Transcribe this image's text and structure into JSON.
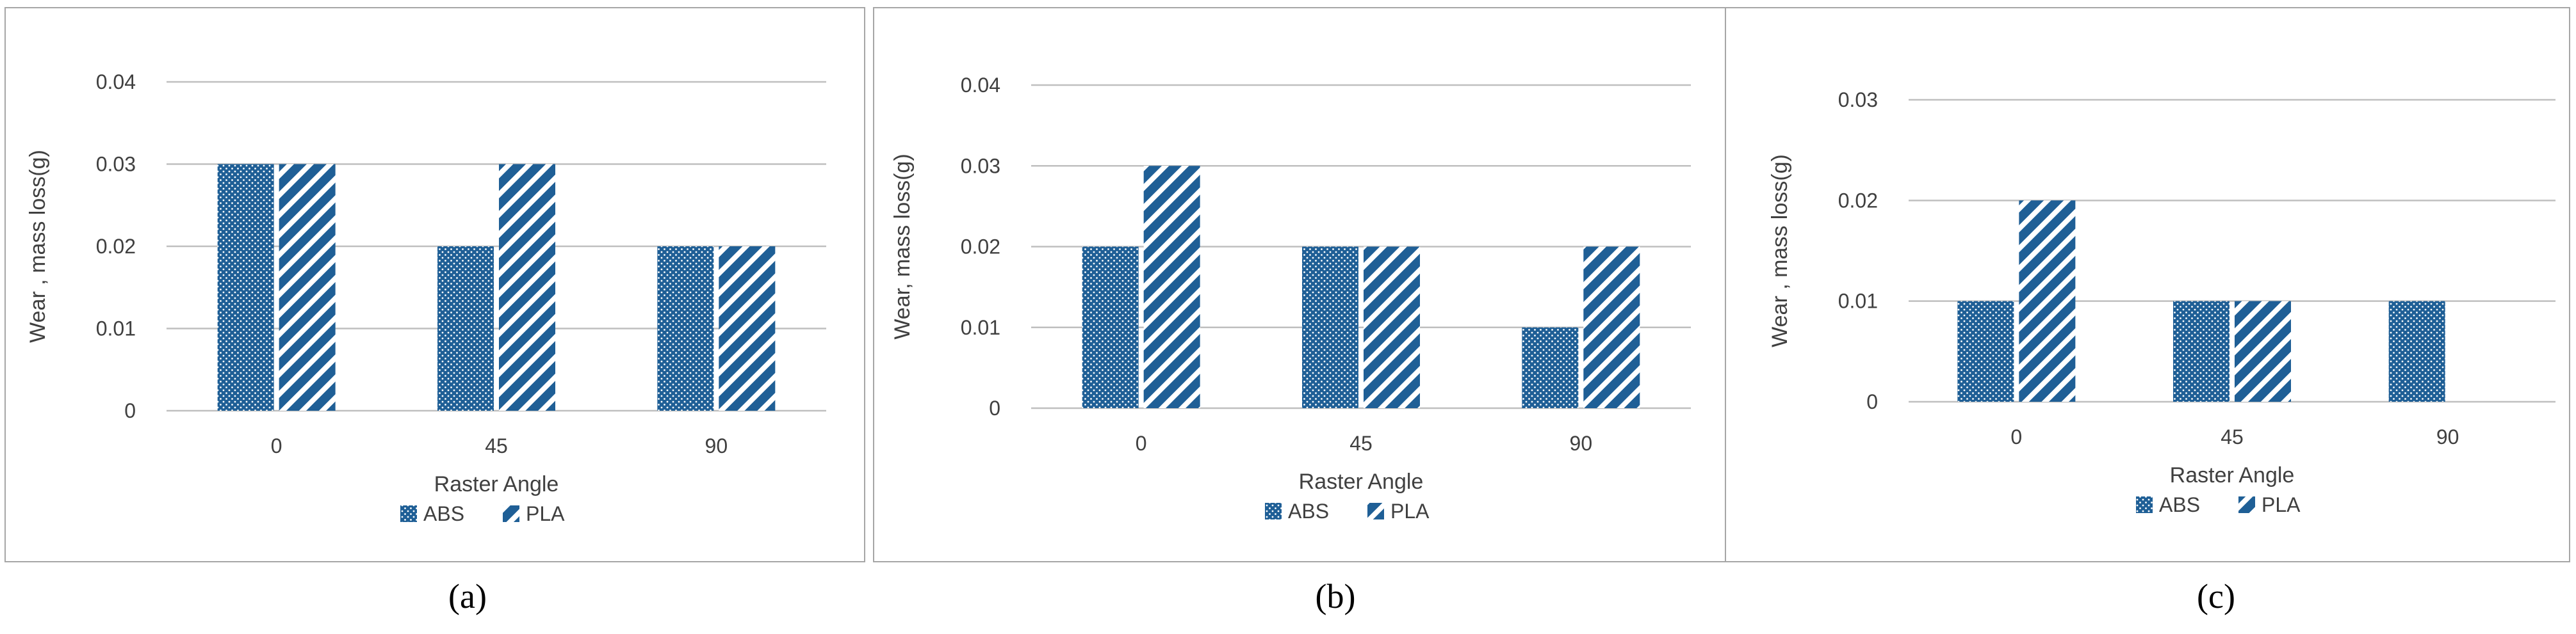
{
  "colors": {
    "abs": "#1f5f96",
    "pla": "#1f5f96",
    "gridline": "#bfbfbf",
    "panel_border": "#a6a6a6",
    "text": "#404040"
  },
  "chart_data": [
    {
      "type": "bar",
      "caption": "(a)",
      "categories": [
        "0",
        "45",
        "90"
      ],
      "series": [
        {
          "name": "ABS",
          "values": [
            0.03,
            0.02,
            0.02
          ],
          "pattern": "dots"
        },
        {
          "name": "PLA",
          "values": [
            0.03,
            0.03,
            0.02
          ],
          "pattern": "diagonal-stripes"
        }
      ],
      "xlabel": "Raster Angle",
      "ylabel": "Wear , mass loss(g)",
      "ylim": [
        0,
        0.04
      ],
      "yticks": [
        "0",
        "0.01",
        "0.02",
        "0.03",
        "0.04"
      ],
      "grid": true,
      "legend": "bottom"
    },
    {
      "type": "bar",
      "caption": "(b)",
      "categories": [
        "0",
        "45",
        "90"
      ],
      "series": [
        {
          "name": "ABS",
          "values": [
            0.02,
            0.02,
            0.01
          ],
          "pattern": "dots"
        },
        {
          "name": "PLA",
          "values": [
            0.03,
            0.02,
            0.02
          ],
          "pattern": "diagonal-stripes"
        }
      ],
      "xlabel": "Raster Angle",
      "ylabel": "Wear, mass loss(g)",
      "ylim": [
        0,
        0.04
      ],
      "yticks": [
        "0",
        "0.01",
        "0.02",
        "0.03",
        "0.04"
      ],
      "grid": true,
      "legend": "bottom"
    },
    {
      "type": "bar",
      "caption": "(c)",
      "categories": [
        "0",
        "45",
        "90"
      ],
      "series": [
        {
          "name": "ABS",
          "values": [
            0.01,
            0.01,
            0.01
          ],
          "pattern": "dots"
        },
        {
          "name": "PLA",
          "values": [
            0.02,
            0.01,
            0
          ],
          "pattern": "diagonal-stripes"
        }
      ],
      "xlabel": "Raster Angle",
      "ylabel": "Wear , mass loss(g)",
      "ylim": [
        0,
        0.03
      ],
      "yticks": [
        "0",
        "0.01",
        "0.02",
        "0.03"
      ],
      "grid": true,
      "legend": "bottom"
    }
  ]
}
